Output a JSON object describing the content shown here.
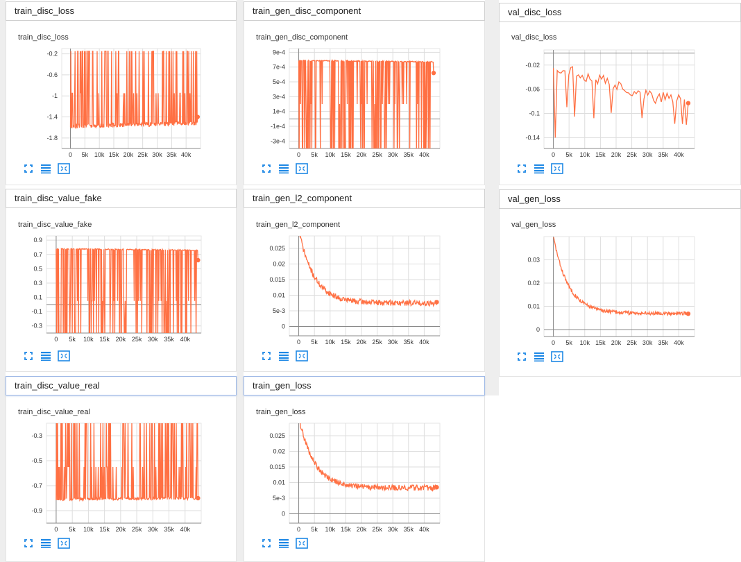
{
  "colors": {
    "line": "#ff7043",
    "grid": "#dddddd",
    "axis": "#888888",
    "tool": "#1e88e5"
  },
  "tool_icons": [
    "fullscreen-icon",
    "data-table-icon",
    "fit-domain-icon"
  ],
  "cards": [
    {
      "header": "train_disc_loss",
      "active": false,
      "chart_data": {
        "type": "line",
        "title": "train_disc_loss",
        "xticks": [
          "0",
          "5k",
          "10k",
          "15k",
          "20k",
          "25k",
          "30k",
          "35k",
          "40k"
        ],
        "yticks": [
          "-0.2",
          "-0.6",
          "-1",
          "-1.4",
          "-1.8"
        ],
        "ytick_values": [
          -0.2,
          -0.6,
          -1,
          -1.4,
          -1.8
        ],
        "xlim": [
          -3000,
          45000
        ],
        "ylim": [
          -2.0,
          -0.1
        ],
        "zero_line": false,
        "pattern": "spiky",
        "x_end": 44000,
        "baseline": -1.58,
        "baseline_end": -1.52,
        "spike_to": -0.15,
        "spike_alt": -0.95,
        "noise": 0.04,
        "spike_prob": 0.28,
        "last": -1.4,
        "seed": 11
      }
    },
    {
      "header": "train_gen_disc_component",
      "active": false,
      "chart_data": {
        "type": "line",
        "title": "train_gen_disc_component",
        "xticks": [
          "0",
          "5k",
          "10k",
          "15k",
          "20k",
          "25k",
          "30k",
          "35k",
          "40k"
        ],
        "yticks": [
          "9e-4",
          "7e-4",
          "5e-4",
          "3e-4",
          "1e-4",
          "-1e-4",
          "-3e-4"
        ],
        "ytick_values": [
          0.0009,
          0.0007,
          0.0005,
          0.0003,
          0.0001,
          -0.0001,
          -0.0003
        ],
        "xlim": [
          -3000,
          45000
        ],
        "ylim": [
          -0.0004,
          0.00095
        ],
        "zero_line": true,
        "pattern": "dropouts",
        "x_end": 43000,
        "baseline": 0.00079,
        "baseline_end": 0.00077,
        "spike_to": -0.00045,
        "spike_alt": 0.0002,
        "noise": 6e-06,
        "spike_prob": 0.3,
        "last": 0.00062,
        "seed": 23
      }
    },
    {
      "header": "val_disc_loss",
      "active": false,
      "chart_data": {
        "type": "line",
        "title": "val_disc_loss",
        "xticks": [
          "0",
          "5k",
          "10k",
          "15k",
          "20k",
          "25k",
          "30k",
          "35k",
          "40k"
        ],
        "yticks": [
          "-0.02",
          "-0.06",
          "-0.1",
          "-0.14"
        ],
        "ytick_values": [
          -0.02,
          -0.06,
          -0.1,
          -0.14
        ],
        "xlim": [
          -3000,
          45000
        ],
        "ylim": [
          -0.158,
          0.005
        ],
        "zero_line": true,
        "pattern": "val",
        "x_end": 43000,
        "baseline": -0.02,
        "baseline_end": -0.075,
        "spike_to": -0.14,
        "spike_alt": -0.1,
        "noise": 0.01,
        "spike_prob": 0.12,
        "last": -0.083,
        "seed": 37
      }
    },
    {
      "header": "train_disc_value_fake",
      "active": false,
      "chart_data": {
        "type": "line",
        "title": "train_disc_value_fake",
        "xticks": [
          "0",
          "5k",
          "10k",
          "15k",
          "20k",
          "25k",
          "30k",
          "35k",
          "40k"
        ],
        "yticks": [
          "0.9",
          "0.7",
          "0.5",
          "0.3",
          "0.1",
          "-0.1",
          "-0.3"
        ],
        "ytick_values": [
          0.9,
          0.7,
          0.5,
          0.3,
          0.1,
          -0.1,
          -0.3
        ],
        "xlim": [
          -3000,
          45000
        ],
        "ylim": [
          -0.4,
          0.96
        ],
        "zero_line": true,
        "pattern": "dropouts",
        "x_end": 44000,
        "baseline": 0.78,
        "baseline_end": 0.76,
        "spike_to": -0.45,
        "spike_alt": 0.05,
        "noise": 0.006,
        "spike_prob": 0.3,
        "last": 0.62,
        "seed": 53
      }
    },
    {
      "header": "train_gen_l2_component",
      "active": false,
      "chart_data": {
        "type": "line",
        "title": "train_gen_l2_component",
        "xticks": [
          "0",
          "5k",
          "10k",
          "15k",
          "20k",
          "25k",
          "30k",
          "35k",
          "40k"
        ],
        "yticks": [
          "0.025",
          "0.02",
          "0.015",
          "0.01",
          "5e-3",
          "0"
        ],
        "ytick_values": [
          0.025,
          0.02,
          0.015,
          0.01,
          0.005,
          0
        ],
        "xlim": [
          -3000,
          45000
        ],
        "ylim": [
          -0.003,
          0.029
        ],
        "zero_line": true,
        "pattern": "decay",
        "x_end": 44000,
        "baseline": 0.031,
        "baseline_end": 0.0075,
        "spike_to": 0,
        "spike_alt": 0,
        "noise": 0.0009,
        "spike_prob": 0,
        "last": 0.0078,
        "seed": 71
      }
    },
    {
      "header": "val_gen_loss",
      "active": false,
      "chart_data": {
        "type": "line",
        "title": "val_gen_loss",
        "xticks": [
          "0",
          "5k",
          "10k",
          "15k",
          "20k",
          "25k",
          "30k",
          "35k",
          "40k"
        ],
        "yticks": [
          "0.03",
          "0.02",
          "0.01",
          "0"
        ],
        "ytick_values": [
          0.03,
          0.02,
          0.01,
          0
        ],
        "xlim": [
          -3000,
          45000
        ],
        "ylim": [
          -0.003,
          0.04
        ],
        "zero_line": true,
        "pattern": "decay",
        "x_end": 43000,
        "baseline": 0.04,
        "baseline_end": 0.007,
        "spike_to": 0,
        "spike_alt": 0,
        "noise": 0.0008,
        "spike_prob": 0,
        "last": 0.0068,
        "seed": 83
      }
    },
    {
      "header": "train_disc_value_real",
      "active": true,
      "chart_data": {
        "type": "line",
        "title": "train_disc_value_real",
        "xticks": [
          "0",
          "5k",
          "10k",
          "15k",
          "20k",
          "25k",
          "30k",
          "35k",
          "40k"
        ],
        "yticks": [
          "-0.3",
          "-0.5",
          "-0.7",
          "-0.9"
        ],
        "ytick_values": [
          -0.3,
          -0.5,
          -0.7,
          -0.9
        ],
        "xlim": [
          -3000,
          45000
        ],
        "ylim": [
          -1.0,
          -0.2
        ],
        "zero_line": false,
        "pattern": "spiky",
        "x_end": 44000,
        "baseline": -0.81,
        "baseline_end": -0.8,
        "spike_to": -0.18,
        "spike_alt": -0.55,
        "noise": 0.01,
        "spike_prob": 0.3,
        "last": -0.8,
        "seed": 97
      }
    },
    {
      "header": "train_gen_loss",
      "active": true,
      "chart_data": {
        "type": "line",
        "title": "train_gen_loss",
        "xticks": [
          "0",
          "5k",
          "10k",
          "15k",
          "20k",
          "25k",
          "30k",
          "35k",
          "40k"
        ],
        "yticks": [
          "0.025",
          "0.02",
          "0.015",
          "0.01",
          "5e-3",
          "0"
        ],
        "ytick_values": [
          0.025,
          0.02,
          0.015,
          0.01,
          0.005,
          0
        ],
        "xlim": [
          -3000,
          45000
        ],
        "ylim": [
          -0.003,
          0.029
        ],
        "zero_line": true,
        "pattern": "decay",
        "x_end": 44000,
        "baseline": 0.031,
        "baseline_end": 0.0083,
        "spike_to": 0,
        "spike_alt": 0,
        "noise": 0.0009,
        "spike_prob": 0,
        "last": 0.0085,
        "seed": 109
      }
    }
  ]
}
